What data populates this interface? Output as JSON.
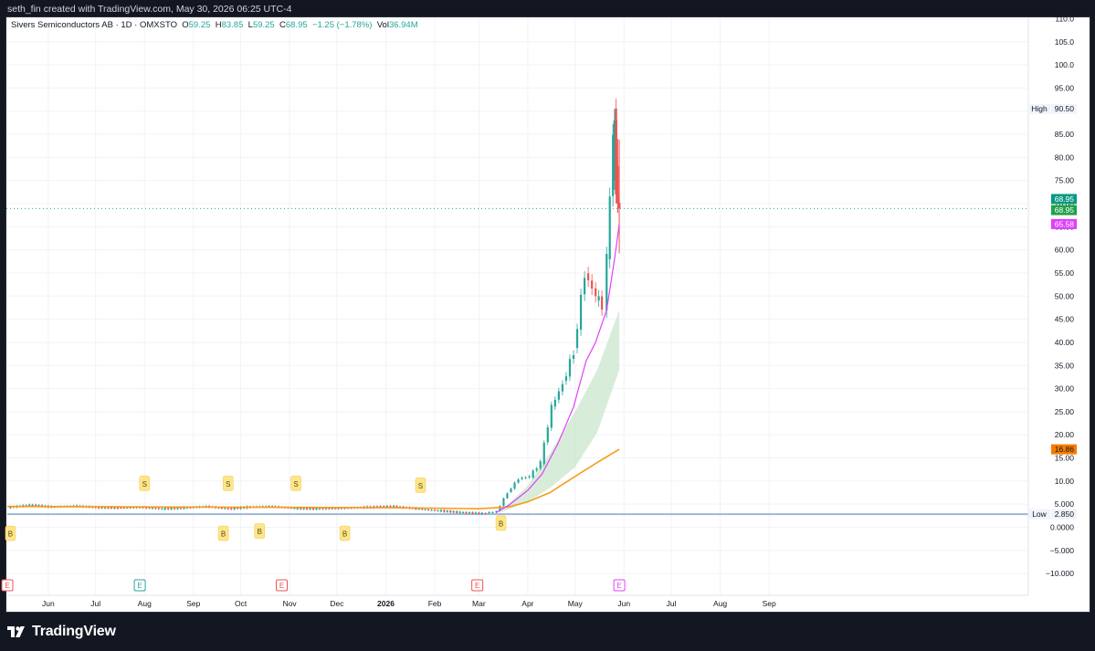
{
  "header": {
    "caption": "seth_fin created with TradingView.com, May 30, 2026 06:25 UTC-4"
  },
  "legend": {
    "symbol": "Sivers Semiconductors AB · 1D · OMXSTO",
    "open_label": "O",
    "open": "59.25",
    "high_label": "H",
    "high": "83.85",
    "low_label": "L",
    "low": "59.25",
    "close_label": "C",
    "close": "68.95",
    "change": "−1.25 (−1.78%)",
    "vol_label": "Vol",
    "vol": "36.94M"
  },
  "footer": {
    "brand": "TradingView"
  },
  "colors": {
    "up": "#26a69a",
    "down": "#ef5350",
    "ma_orange": "#f59d1a",
    "ma_pink": "#e040fb",
    "band": "#c8e6c9",
    "low_line": "#9fb6d8",
    "signal": "#fde68a"
  },
  "chart_data": {
    "type": "line",
    "x_tick_labels": [
      "Jun",
      "Jul",
      "Aug",
      "Sep",
      "Oct",
      "Nov",
      "Dec",
      "2026",
      "Feb",
      "Mar",
      "Apr",
      "May",
      "Jun",
      "Jul",
      "Aug",
      "Sep"
    ],
    "y_tick_labels": [
      "110.0",
      "105.0",
      "100.0",
      "95.00",
      "90.00",
      "85.00",
      "80.00",
      "75.00",
      "70.00",
      "65.00",
      "60.00",
      "55.00",
      "50.00",
      "45.00",
      "40.00",
      "35.00",
      "30.00",
      "25.00",
      "20.00",
      "15.00",
      "10.00",
      "5.000",
      "0.0000",
      "−5.000",
      "−10.000"
    ],
    "ylim": [
      -10,
      110
    ],
    "price_labels": {
      "high_label": "High",
      "high": "90.50",
      "last": "68.95",
      "close": "68.95",
      "ema": "65.58",
      "sma": "16.86",
      "low_label": "Low",
      "low": "2.850"
    },
    "series": [
      {
        "type": "line",
        "points": [
          [
            "2025-05-06",
            4.3
          ],
          [
            "2025-05-20",
            4.8
          ],
          [
            "2025-06-03",
            4.4
          ],
          [
            "2025-06-17",
            4.6
          ],
          [
            "2025-07-01",
            4.3
          ],
          [
            "2025-07-15",
            4.2
          ],
          [
            "2025-07-29",
            4.3
          ],
          [
            "2025-08-12",
            4.0
          ],
          [
            "2025-08-26",
            4.2
          ],
          [
            "2025-09-09",
            4.5
          ],
          [
            "2025-09-23",
            4.0
          ],
          [
            "2025-10-07",
            4.4
          ],
          [
            "2025-10-21",
            4.5
          ],
          [
            "2025-11-04",
            4.1
          ],
          [
            "2025-11-18",
            4.0
          ],
          [
            "2025-12-02",
            4.1
          ],
          [
            "2025-12-16",
            4.3
          ],
          [
            "2026-01-06",
            4.5
          ],
          [
            "2026-01-20",
            4.0
          ],
          [
            "2026-02-03",
            3.6
          ],
          [
            "2026-02-17",
            3.2
          ],
          [
            "2026-03-03",
            3.0
          ],
          [
            "2026-03-12",
            3.4
          ],
          [
            "2026-03-19",
            7.5
          ],
          [
            "2026-03-26",
            10.5
          ],
          [
            "2026-04-02",
            11.0
          ],
          [
            "2026-04-09",
            14.0
          ],
          [
            "2026-04-16",
            26.0
          ],
          [
            "2026-04-23",
            31.0
          ],
          [
            "2026-04-30",
            38.0
          ],
          [
            "2026-05-07",
            55.0
          ],
          [
            "2026-05-14",
            50.0
          ],
          [
            "2026-05-18",
            48.0
          ],
          [
            "2026-05-21",
            58.0
          ],
          [
            "2026-05-25",
            85.0
          ],
          [
            "2026-05-26",
            89.0
          ],
          [
            "2026-05-27",
            78.0
          ],
          [
            "2026-05-28",
            70.2
          ],
          [
            "2026-05-29",
            68.95
          ]
        ]
      },
      {
        "type": "line",
        "points": [
          [
            "2025-05-06",
            4.5
          ],
          [
            "2025-08-01",
            4.4
          ],
          [
            "2025-11-01",
            4.3
          ],
          [
            "2026-01-15",
            4.2
          ],
          [
            "2026-03-01",
            4.0
          ],
          [
            "2026-03-20",
            4.4
          ],
          [
            "2026-04-01",
            5.5
          ],
          [
            "2026-04-15",
            7.5
          ],
          [
            "2026-05-01",
            11.0
          ],
          [
            "2026-05-15",
            14.0
          ],
          [
            "2026-05-29",
            16.86
          ]
        ]
      },
      {
        "type": "line",
        "points": [
          [
            "2026-03-12",
            3.2
          ],
          [
            "2026-03-20",
            4.8
          ],
          [
            "2026-04-01",
            8.0
          ],
          [
            "2026-04-10",
            11.5
          ],
          [
            "2026-04-20",
            18.0
          ],
          [
            "2026-04-30",
            26.0
          ],
          [
            "2026-05-08",
            36.0
          ],
          [
            "2026-05-14",
            40.0
          ],
          [
            "2026-05-21",
            47.0
          ],
          [
            "2026-05-26",
            58.0
          ],
          [
            "2026-05-29",
            65.58
          ]
        ]
      },
      {
        "type": "area",
        "points": [
          [
            "2026-03-15",
            3.5,
            3.2
          ],
          [
            "2026-04-01",
            9.0,
            5.5
          ],
          [
            "2026-04-15",
            16.0,
            8.5
          ],
          [
            "2026-05-01",
            25.0,
            13.0
          ],
          [
            "2026-05-15",
            34.0,
            20.5
          ],
          [
            "2026-05-29",
            47.0,
            34.0
          ]
        ]
      },
      {
        "type": "line",
        "points": [
          [
            "2025-05-06",
            2.85
          ],
          [
            "2026-06-01",
            2.85
          ]
        ]
      }
    ],
    "markers": [
      {
        "text": "S",
        "date": "2025-08-01",
        "value": 9.3
      },
      {
        "text": "S",
        "date": "2025-09-23",
        "value": 9.3
      },
      {
        "text": "S",
        "date": "2025-11-05",
        "value": 9.3
      },
      {
        "text": "S",
        "date": "2026-01-23",
        "value": 8.9
      },
      {
        "text": "B",
        "date": "2025-05-08",
        "value": -1.5
      },
      {
        "text": "B",
        "date": "2025-09-20",
        "value": -1.5
      },
      {
        "text": "B",
        "date": "2025-10-13",
        "value": -1.0
      },
      {
        "text": "B",
        "date": "2025-12-06",
        "value": -1.5
      },
      {
        "text": "B",
        "date": "2026-03-15",
        "value": 0.7
      }
    ],
    "events": [
      {
        "text": "E",
        "date": "2025-05-06",
        "color": "#ef5350"
      },
      {
        "text": "E",
        "date": "2025-07-29",
        "color": "#26a69a"
      },
      {
        "text": "E",
        "date": "2025-10-27",
        "color": "#ef5350"
      },
      {
        "text": "E",
        "date": "2026-02-28",
        "color": "#ef5350"
      },
      {
        "text": "E",
        "date": "2026-05-29",
        "color": "#e040fb"
      }
    ]
  }
}
